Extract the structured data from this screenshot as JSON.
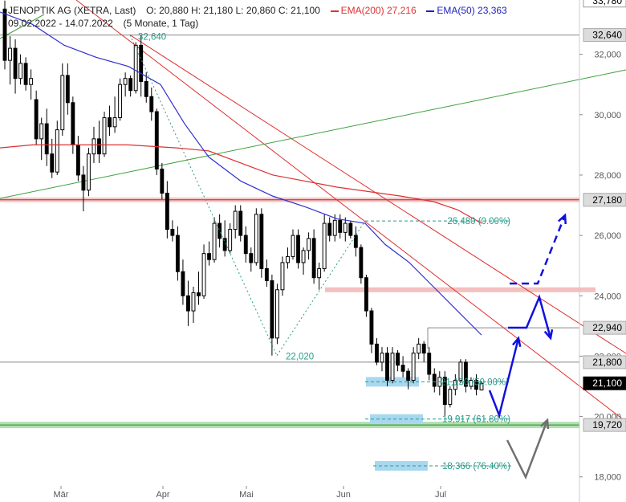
{
  "header": {
    "title": "JENOPTIK AG (XETRA, Last)",
    "ohlc": "O: 20,880  H: 21,180  L: 20,860  C: 21,100",
    "ema200_label": "EMA(200)",
    "ema200_value": "27,216",
    "ema50_label": "EMA(50)",
    "ema50_value": "23,363",
    "range": "09.02.2022 - 14.07.2022",
    "period": "(5 Monate, 1 Tag)"
  },
  "colors": {
    "candle": "#000000",
    "ema200": "#e03030",
    "ema50": "#3030d0",
    "trend_red": "#e03030",
    "trend_green": "#40a040",
    "fib": "#2a9a8a",
    "arrow_blue": "#1010e0",
    "arrow_gray": "#707070",
    "zone_red": "#f2b8b8",
    "zone_green": "#a8dca8",
    "zone_blue": "#a8d8f0"
  },
  "chart_data": {
    "type": "candlestick",
    "y_axis_ticks": [
      "32,000",
      "30,000",
      "28,000",
      "26,000",
      "24,000",
      "22,000",
      "20,000",
      "18,000"
    ],
    "ylim": [
      17700,
      33800
    ],
    "x_axis_labels": [
      "Mär",
      "Apr",
      "Mai",
      "Jun",
      "Jul"
    ],
    "price_tags": [
      {
        "label": "33,780",
        "value": 33780,
        "style": "white"
      },
      {
        "label": "32,640",
        "value": 32640,
        "style": "gray"
      },
      {
        "label": "27,180",
        "value": 27180,
        "style": "gray"
      },
      {
        "label": "22,940",
        "value": 22940,
        "style": "gray"
      },
      {
        "label": "21,800",
        "value": 21800,
        "style": "gray"
      },
      {
        "label": "21,100",
        "value": 21100,
        "style": "black"
      },
      {
        "label": "19,720",
        "value": 19720,
        "style": "gray"
      }
    ],
    "annotations": [
      {
        "text": "32,640",
        "value": 32640
      },
      {
        "text": "22,020",
        "value": 22020
      },
      {
        "text": "26,480 (0.00%)",
        "value": 26480
      },
      {
        "text": "21,150 (50.00%)",
        "value": 21150
      },
      {
        "text": "19,917 (61.80%)",
        "value": 19917
      },
      {
        "text": "18,366 (76.40%)",
        "value": 18366
      }
    ],
    "candles": [
      [
        33500,
        33780,
        31500,
        31800
      ],
      [
        31800,
        32600,
        31000,
        32200
      ],
      [
        32200,
        32500,
        30700,
        31200
      ],
      [
        31200,
        32000,
        31000,
        31700
      ],
      [
        31700,
        31900,
        30800,
        31000
      ],
      [
        31000,
        31500,
        30500,
        31200
      ],
      [
        30500,
        30800,
        29000,
        29200
      ],
      [
        29200,
        29900,
        28500,
        29700
      ],
      [
        29700,
        30200,
        28300,
        28700
      ],
      [
        28700,
        29200,
        27900,
        28100
      ],
      [
        28100,
        29800,
        28000,
        29500
      ],
      [
        29500,
        31700,
        29300,
        31300
      ],
      [
        31300,
        31700,
        30000,
        30400
      ],
      [
        30400,
        30600,
        28700,
        29000
      ],
      [
        29000,
        29300,
        27800,
        28000
      ],
      [
        28000,
        28300,
        26800,
        27500
      ],
      [
        27500,
        28900,
        27300,
        28700
      ],
      [
        28700,
        29600,
        28400,
        29200
      ],
      [
        29200,
        29800,
        28400,
        28700
      ],
      [
        28700,
        30100,
        28600,
        29900
      ],
      [
        29900,
        30300,
        29300,
        29600
      ],
      [
        29600,
        30600,
        29400,
        29900
      ],
      [
        29900,
        31200,
        29800,
        31000
      ],
      [
        31000,
        31400,
        30600,
        31200
      ],
      [
        31200,
        31300,
        30600,
        30800
      ],
      [
        30800,
        32400,
        30700,
        32300
      ],
      [
        32300,
        32640,
        30600,
        31100
      ],
      [
        31100,
        31400,
        30400,
        30600
      ],
      [
        30600,
        30900,
        29800,
        30100
      ],
      [
        30100,
        30200,
        28000,
        28200
      ],
      [
        28200,
        28400,
        27200,
        27400
      ],
      [
        27400,
        27800,
        25900,
        26200
      ],
      [
        26200,
        26500,
        25800,
        26000
      ],
      [
        26000,
        26300,
        24500,
        24800
      ],
      [
        24800,
        25200,
        23700,
        24000
      ],
      [
        24000,
        24500,
        23000,
        23500
      ],
      [
        23500,
        24300,
        23100,
        24100
      ],
      [
        24100,
        24800,
        23700,
        24000
      ],
      [
        24000,
        25700,
        23900,
        25400
      ],
      [
        25400,
        25800,
        25000,
        25200
      ],
      [
        25200,
        26600,
        25100,
        26400
      ],
      [
        26400,
        26700,
        25600,
        25900
      ],
      [
        25900,
        26500,
        25300,
        25500
      ],
      [
        25500,
        26400,
        25400,
        26200
      ],
      [
        26200,
        27000,
        25900,
        26800
      ],
      [
        26800,
        27000,
        25800,
        26000
      ],
      [
        26000,
        26300,
        25100,
        25400
      ],
      [
        25400,
        25600,
        24800,
        25100
      ],
      [
        25100,
        26900,
        25000,
        26700
      ],
      [
        26700,
        26900,
        24600,
        24900
      ],
      [
        24900,
        25200,
        24300,
        24500
      ],
      [
        24500,
        24700,
        22020,
        22600
      ],
      [
        22600,
        24400,
        22400,
        24200
      ],
      [
        24200,
        25300,
        24000,
        25100
      ],
      [
        25100,
        25600,
        24900,
        25300
      ],
      [
        25300,
        26200,
        25200,
        26000
      ],
      [
        26000,
        26200,
        24900,
        25100
      ],
      [
        25100,
        25600,
        24700,
        25500
      ],
      [
        25500,
        26100,
        25200,
        25900
      ],
      [
        25900,
        26200,
        24400,
        24600
      ],
      [
        24600,
        25100,
        24200,
        24900
      ],
      [
        24900,
        26700,
        24800,
        26400
      ],
      [
        26400,
        26600,
        25800,
        26000
      ],
      [
        26000,
        26700,
        25800,
        26500
      ],
      [
        26500,
        26700,
        25900,
        26100
      ],
      [
        26100,
        26600,
        25800,
        26400
      ],
      [
        26400,
        26480,
        25900,
        26000
      ],
      [
        26000,
        26300,
        25300,
        25600
      ],
      [
        25600,
        25700,
        24400,
        24600
      ],
      [
        24600,
        24700,
        23300,
        23500
      ],
      [
        23500,
        23600,
        22100,
        22400
      ],
      [
        22400,
        22600,
        21700,
        21800
      ],
      [
        21800,
        22300,
        21500,
        22100
      ],
      [
        22100,
        22300,
        21000,
        21200
      ],
      [
        21200,
        22300,
        21100,
        22100
      ],
      [
        22100,
        22200,
        21500,
        21700
      ],
      [
        21700,
        22000,
        21300,
        21500
      ],
      [
        21500,
        21600,
        20900,
        21200
      ],
      [
        21200,
        22300,
        21100,
        22100
      ],
      [
        22100,
        22600,
        21900,
        22400
      ],
      [
        22400,
        22500,
        21800,
        22100
      ],
      [
        22100,
        22300,
        21200,
        21400
      ],
      [
        21400,
        21600,
        20800,
        21000
      ],
      [
        21000,
        21500,
        20700,
        21300
      ],
      [
        21300,
        21500,
        20000,
        20400
      ],
      [
        20400,
        21000,
        20300,
        20900
      ],
      [
        20900,
        21400,
        20700,
        21200
      ],
      [
        21200,
        21900,
        21100,
        21800
      ],
      [
        21800,
        21900,
        20800,
        21000
      ],
      [
        21000,
        21300,
        20900,
        21200
      ],
      [
        21200,
        21400,
        20700,
        20900
      ],
      [
        20880,
        21180,
        20860,
        21100
      ]
    ]
  }
}
